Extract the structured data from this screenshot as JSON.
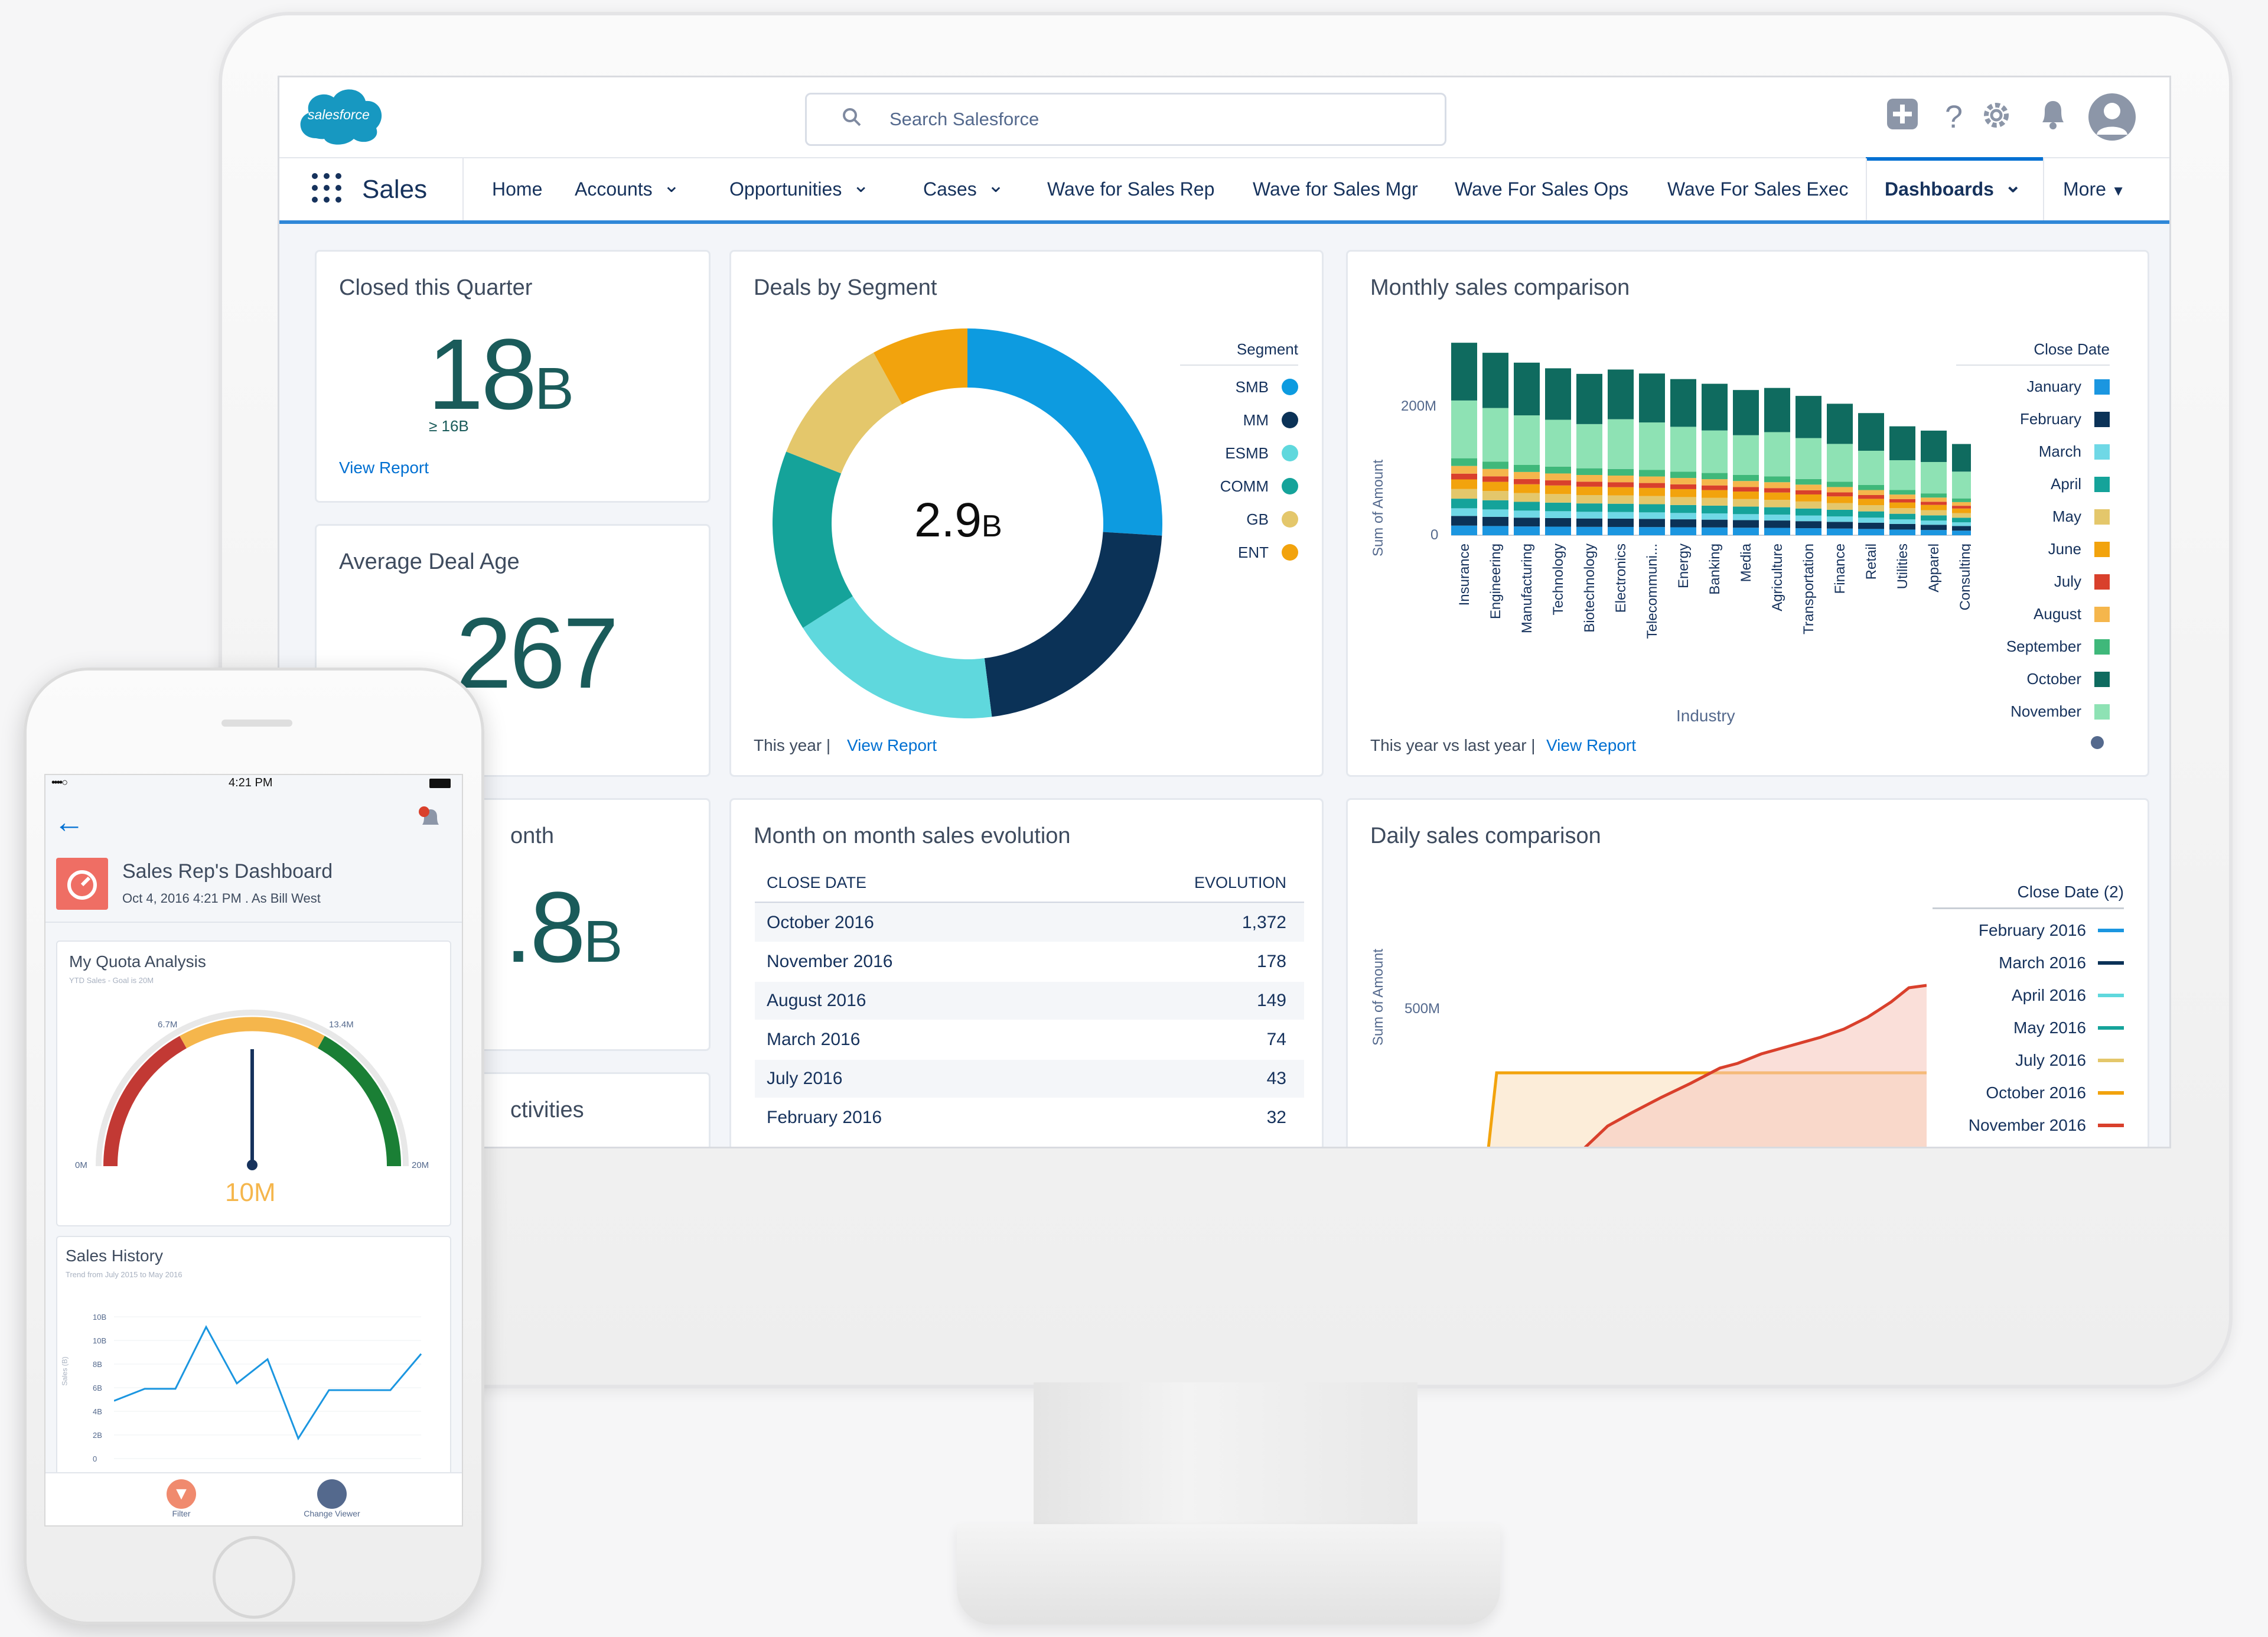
{
  "app": {
    "logo_text": "salesforce",
    "name": "Sales"
  },
  "search": {
    "placeholder": "Search Salesforce"
  },
  "header_icons": [
    "plus-square-icon",
    "help-icon",
    "gear-icon",
    "bell-icon",
    "avatar-icon"
  ],
  "nav": {
    "items": [
      {
        "label": "Home",
        "chevron": false
      },
      {
        "label": "Accounts",
        "chevron": true
      },
      {
        "label": "Opportunities",
        "chevron": true
      },
      {
        "label": "Cases",
        "chevron": true
      },
      {
        "label": "Wave for Sales Rep",
        "chevron": false
      },
      {
        "label": "Wave for Sales Mgr",
        "chevron": false
      },
      {
        "label": "Wave For Sales Ops",
        "chevron": false
      },
      {
        "label": "Wave For Sales Exec",
        "chevron": false
      },
      {
        "label": "Dashboards",
        "chevron": true,
        "active": true
      }
    ],
    "more": "More"
  },
  "kpis": {
    "closed": {
      "title": "Closed this Quarter",
      "value": "18",
      "unit": "B",
      "sub": "≥ 16B",
      "link": "View Report"
    },
    "age": {
      "title": "Average Deal Age",
      "value": "267"
    },
    "month": {
      "title_partial": "onth",
      "value_partial": ".8",
      "unit": "B"
    },
    "activities": {
      "title_partial": "ctivities"
    }
  },
  "deals": {
    "title": "Deals by Segment",
    "center_value": "2.9",
    "center_unit": "B",
    "legend_title": "Segment",
    "footer_muted": "This year |",
    "footer_link": "View Report",
    "chart_data": {
      "type": "pie",
      "donut": true,
      "labels": [
        "SMB",
        "MM",
        "ESMB",
        "COMM",
        "GB",
        "ENT"
      ],
      "values": [
        26,
        22,
        18,
        15,
        11,
        8
      ],
      "colors": [
        "#0d9be0",
        "#0b3257",
        "#5fd8dd",
        "#15a39a",
        "#e4c76b",
        "#f2a30d"
      ]
    }
  },
  "monthly": {
    "title": "Monthly sales comparison",
    "ylabel": "Sum of Amount",
    "xlabel": "Industry",
    "ytick_top": "200M",
    "ytick_zero": "0",
    "legend_title": "Close Date",
    "footer_muted": "This year vs last year |",
    "footer_link": "View Report",
    "chart_data": {
      "type": "bar",
      "stacked": true,
      "categories": [
        "Insurance",
        "Engineering",
        "Manufacturing",
        "Technology",
        "Biotechnology",
        "Electronics",
        "Telecommuni...",
        "Energy",
        "Banking",
        "Media",
        "Agriculture",
        "Transportation",
        "Finance",
        "Retail",
        "Utilities",
        "Apparel",
        "Consulting"
      ],
      "totals": [
        230,
        220,
        210,
        205,
        200,
        198,
        195,
        190,
        186,
        180,
        176,
        168,
        160,
        150,
        135,
        125,
        110
      ],
      "series": [
        {
          "name": "January",
          "color": "#1b96e0"
        },
        {
          "name": "February",
          "color": "#0b3257"
        },
        {
          "name": "March",
          "color": "#6fd8e6"
        },
        {
          "name": "April",
          "color": "#15a39a"
        },
        {
          "name": "May",
          "color": "#e4c76b"
        },
        {
          "name": "June",
          "color": "#f2a30d"
        },
        {
          "name": "July",
          "color": "#d9402c"
        },
        {
          "name": "August",
          "color": "#f5b64c"
        },
        {
          "name": "September",
          "color": "#3fb87a"
        },
        {
          "name": "October",
          "color": "#0f6b5f"
        },
        {
          "name": "November",
          "color": "#8ee2b4"
        }
      ]
    }
  },
  "evolution": {
    "title": "Month on month sales evolution",
    "col1": "CLOSE DATE",
    "col2": "EVOLUTION",
    "rows": [
      {
        "date": "October 2016",
        "value": "1,372"
      },
      {
        "date": "November 2016",
        "value": "178"
      },
      {
        "date": "August 2016",
        "value": "149"
      },
      {
        "date": "March 2016",
        "value": "74"
      },
      {
        "date": "July 2016",
        "value": "43"
      },
      {
        "date": "February 2016",
        "value": "32"
      }
    ]
  },
  "daily": {
    "title": "Daily sales comparison",
    "ylabel": "Sum of Amount",
    "ytick": "500M",
    "legend_title": "Close Date (2)",
    "chart_data": {
      "type": "line",
      "series": [
        {
          "name": "February 2016",
          "color": "#1b96e0"
        },
        {
          "name": "March 2016",
          "color": "#0b3257"
        },
        {
          "name": "April 2016",
          "color": "#5fd8dd"
        },
        {
          "name": "May 2016",
          "color": "#15a39a"
        },
        {
          "name": "July 2016",
          "color": "#e4c76b"
        },
        {
          "name": "October 2016",
          "color": "#f2a30d"
        },
        {
          "name": "November 2016",
          "color": "#d9402c"
        }
      ]
    }
  },
  "phone": {
    "status_left": "••••○",
    "status_time": "4:21 PM",
    "dash_title": "Sales Rep's Dashboard",
    "dash_sub": "Oct 4, 2016 4:21 PM . As Bill West",
    "quota": {
      "title": "My Quota Analysis",
      "sub": "YTD Sales - Goal is 20M",
      "value": "10M",
      "min": "0M",
      "t1": "6.7M",
      "t2": "13.4M",
      "max": "20M",
      "fraction": 0.5
    },
    "history": {
      "title": "Sales History",
      "sub": "Trend from July 2015 to May 2016",
      "ylabel": "Sales (B)",
      "yticks": [
        "10B",
        "10B",
        "8B",
        "6B",
        "4B",
        "2B",
        "0"
      ],
      "chart_data": {
        "type": "line",
        "values": [
          4.3,
          5.2,
          5.2,
          9.8,
          5.6,
          7.4,
          1.5,
          5.1,
          5.1,
          5.1,
          7.8
        ]
      }
    },
    "tab_filter": "Filter",
    "tab_viewer": "Change Viewer"
  }
}
